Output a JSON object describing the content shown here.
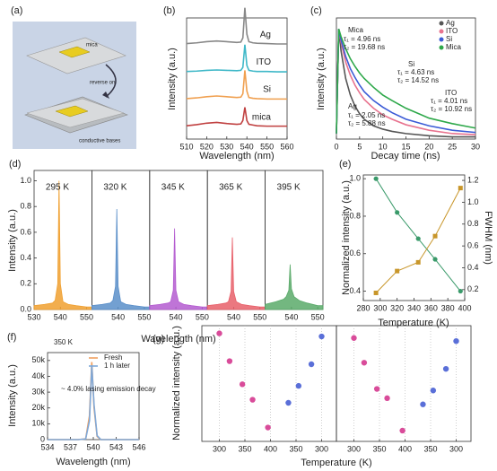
{
  "schematic": {
    "panel_label": "(a)",
    "labels": [
      "mica",
      "reverse on",
      "conductive bases"
    ]
  },
  "chart_data": [
    {
      "type": "line",
      "panel": "(b)",
      "waterfall": true,
      "xlabel": "Wavelength (nm)",
      "ylabel": "Intensity (a.u.)",
      "xlim": [
        510,
        560
      ],
      "xticks": [
        510,
        520,
        530,
        540,
        550,
        560
      ],
      "x": [
        510,
        515,
        520,
        525,
        530,
        535,
        537,
        538,
        539,
        540,
        541,
        543,
        545,
        550,
        555,
        560
      ],
      "series": [
        {
          "name": "Ag",
          "color": "#888888",
          "values": [
            0.05,
            0.07,
            0.1,
            0.12,
            0.1,
            0.08,
            0.09,
            0.2,
            1.0,
            0.3,
            0.1,
            0.07,
            0.06,
            0.05,
            0.04,
            0.04
          ]
        },
        {
          "name": "ITO",
          "color": "#3fb8c8",
          "values": [
            0.04,
            0.05,
            0.07,
            0.08,
            0.07,
            0.06,
            0.07,
            0.15,
            0.75,
            0.2,
            0.07,
            0.05,
            0.04,
            0.04,
            0.03,
            0.03
          ]
        },
        {
          "name": "Si",
          "color": "#f0a050",
          "values": [
            0.05,
            0.07,
            0.1,
            0.12,
            0.1,
            0.08,
            0.09,
            0.18,
            0.8,
            0.25,
            0.08,
            0.06,
            0.05,
            0.04,
            0.04,
            0.04
          ]
        },
        {
          "name": "mica",
          "color": "#c04040",
          "values": [
            0.06,
            0.09,
            0.13,
            0.15,
            0.12,
            0.1,
            0.11,
            0.2,
            0.55,
            0.2,
            0.1,
            0.08,
            0.06,
            0.05,
            0.05,
            0.05
          ]
        }
      ]
    },
    {
      "type": "line",
      "panel": "(c)",
      "xlabel": "Decay time (ns)",
      "ylabel": "Intensity (a.u.)",
      "legend": "top-right",
      "xlim": [
        0,
        30
      ],
      "xticks": [
        0,
        5,
        10,
        15,
        20,
        25,
        30
      ],
      "ylim": [
        0,
        1.1
      ],
      "x": [
        0,
        0.5,
        1,
        2,
        3,
        4,
        5,
        6,
        8,
        10,
        12,
        15,
        20,
        25,
        30
      ],
      "series": [
        {
          "name": "Ag",
          "color": "#555555",
          "values": [
            0.05,
            1.0,
            0.8,
            0.55,
            0.4,
            0.3,
            0.23,
            0.18,
            0.12,
            0.09,
            0.07,
            0.05,
            0.03,
            0.02,
            0.02
          ]
        },
        {
          "name": "ITO",
          "color": "#e8738f",
          "values": [
            0.05,
            1.0,
            0.88,
            0.7,
            0.58,
            0.49,
            0.42,
            0.36,
            0.28,
            0.22,
            0.18,
            0.13,
            0.08,
            0.05,
            0.04
          ]
        },
        {
          "name": "Si",
          "color": "#3b5bd6",
          "values": [
            0.05,
            1.0,
            0.9,
            0.75,
            0.64,
            0.56,
            0.49,
            0.43,
            0.35,
            0.29,
            0.24,
            0.18,
            0.12,
            0.08,
            0.06
          ]
        },
        {
          "name": "Mica",
          "color": "#2ea84a",
          "values": [
            0.05,
            1.0,
            0.93,
            0.82,
            0.73,
            0.66,
            0.6,
            0.55,
            0.47,
            0.4,
            0.35,
            0.28,
            0.19,
            0.14,
            0.1
          ]
        }
      ],
      "annotations": [
        {
          "text": "Mica",
          "color": "#2ea84a"
        },
        {
          "text": "τ₁ = 4.96 ns",
          "color": "#2ea84a"
        },
        {
          "text": "τ₂ = 19.68 ns",
          "color": "#2ea84a"
        },
        {
          "text": "Si",
          "color": "#3b5bd6"
        },
        {
          "text": "τ₁ = 4.63 ns",
          "color": "#3b5bd6"
        },
        {
          "text": "τ₂ = 14.52 ns",
          "color": "#3b5bd6"
        },
        {
          "text": "ITO",
          "color": "#e8738f"
        },
        {
          "text": "τ₁ = 4.01 ns",
          "color": "#e8738f"
        },
        {
          "text": "τ₂ = 10.92 ns",
          "color": "#e8738f"
        },
        {
          "text": "Ag",
          "color": "#555555"
        },
        {
          "text": "τ₁ = 2.05 ns",
          "color": "#555555"
        },
        {
          "text": "τ₂ = 5.88 ns",
          "color": "#555555"
        }
      ]
    },
    {
      "type": "area",
      "panel": "(d)",
      "xlabel": "Wavelength (nm)",
      "ylabel": "Intensity (a.u.)",
      "label": "295 K",
      "xlim": [
        530,
        552
      ],
      "xticks": [
        530,
        540,
        550
      ],
      "ylim": [
        0,
        1.08
      ],
      "yticks": [
        {
          "value": 0,
          "label": "0.0"
        },
        0.2,
        0.4,
        0.6,
        0.8,
        {
          "value": 1,
          "label": "1.0"
        }
      ],
      "x": [
        530,
        534,
        537,
        538,
        539,
        539.5,
        540,
        541,
        543,
        546,
        550,
        552
      ],
      "series": [
        {
          "color": "#f0a030",
          "values": [
            0.03,
            0.04,
            0.05,
            0.07,
            0.2,
            1.0,
            0.2,
            0.06,
            0.04,
            0.03,
            0.02,
            0.02
          ]
        }
      ]
    },
    {
      "type": "area",
      "label": "320 K",
      "xlim": [
        530,
        552
      ],
      "xticks": [
        540,
        550
      ],
      "ylim": [
        0,
        1.08
      ],
      "x": [
        530,
        534,
        537,
        538,
        539,
        539.5,
        540,
        541,
        543,
        546,
        550,
        552
      ],
      "series": [
        {
          "color": "#5b8fc9",
          "values": [
            0.03,
            0.04,
            0.05,
            0.07,
            0.18,
            0.78,
            0.18,
            0.06,
            0.04,
            0.03,
            0.02,
            0.02
          ]
        }
      ]
    },
    {
      "type": "area",
      "label": "345 K",
      "xlim": [
        530,
        552
      ],
      "xticks": [
        540,
        550
      ],
      "ylim": [
        0,
        1.08
      ],
      "x": [
        530,
        534,
        537,
        538,
        539,
        539.5,
        540,
        541,
        543,
        546,
        550,
        552
      ],
      "series": [
        {
          "color": "#b45cd0",
          "values": [
            0.03,
            0.04,
            0.05,
            0.06,
            0.15,
            0.63,
            0.15,
            0.06,
            0.04,
            0.03,
            0.02,
            0.02
          ]
        }
      ]
    },
    {
      "type": "area",
      "label": "365 K",
      "xlim": [
        530,
        552
      ],
      "xticks": [
        540,
        550
      ],
      "ylim": [
        0,
        1.08
      ],
      "x": [
        530,
        534,
        537,
        538,
        539,
        539.5,
        540,
        541,
        543,
        546,
        550,
        552
      ],
      "series": [
        {
          "color": "#e8606a",
          "values": [
            0.03,
            0.04,
            0.05,
            0.06,
            0.14,
            0.56,
            0.14,
            0.06,
            0.04,
            0.03,
            0.02,
            0.02
          ]
        }
      ]
    },
    {
      "type": "area",
      "label": "395 K",
      "xlim": [
        530,
        552
      ],
      "xticks": [
        540,
        550
      ],
      "ylim": [
        0,
        1.08
      ],
      "x": [
        530,
        534,
        537,
        538,
        539,
        539.5,
        540,
        541,
        543,
        546,
        550,
        552
      ],
      "series": [
        {
          "color": "#5aaa6a",
          "values": [
            0.04,
            0.06,
            0.08,
            0.1,
            0.15,
            0.35,
            0.16,
            0.1,
            0.07,
            0.05,
            0.03,
            0.03
          ]
        }
      ]
    },
    {
      "type": "line",
      "panel": "(e)",
      "markers": true,
      "xlabel": "Temperature (K)",
      "ylabel": "Normalized intensity (a.u.)",
      "y2label": "FWHM (nm)",
      "xlim": [
        280,
        400
      ],
      "xticks": [
        280,
        300,
        320,
        340,
        360,
        380,
        400
      ],
      "ylim": [
        0.35,
        1.02
      ],
      "yticks": [
        0.4,
        0.6,
        0.8,
        {
          "value": 1,
          "label": "1.0"
        }
      ],
      "y2lim": [
        0.1,
        1.25
      ],
      "y2ticks": [
        0.2,
        0.4,
        0.6,
        0.8,
        {
          "value": 1,
          "label": "1.0"
        },
        1.2
      ],
      "x": [
        295,
        320,
        345,
        365,
        395
      ],
      "series": [
        {
          "color": "#3a9a6a",
          "values": [
            1.0,
            0.82,
            0.68,
            0.57,
            0.4
          ]
        },
        {
          "color": "#c8962a",
          "axis": "y2",
          "values": [
            0.17,
            0.37,
            0.45,
            0.69,
            1.13
          ]
        }
      ]
    },
    {
      "type": "line",
      "panel": "(f)",
      "legend": "top-right",
      "xlabel": "Wavelength (nm)",
      "ylabel": "Intensity (a.u.)",
      "xlim": [
        534,
        546
      ],
      "xticks": [
        534,
        537,
        540,
        543,
        546
      ],
      "ylim": [
        0,
        55000
      ],
      "yticks": [
        0,
        {
          "value": 10000,
          "label": "10k"
        },
        {
          "value": 20000,
          "label": "20k"
        },
        {
          "value": 30000,
          "label": "30k"
        },
        {
          "value": 40000,
          "label": "40k"
        },
        {
          "value": 50000,
          "label": "50k"
        }
      ],
      "x": [
        534,
        536,
        538,
        539,
        539.5,
        539.8,
        540.1,
        540.5,
        541,
        543,
        546
      ],
      "series": [
        {
          "name": "Fresh",
          "color": "#f0a060",
          "values": [
            0,
            0,
            0,
            500,
            15000,
            49000,
            20000,
            2000,
            0,
            0,
            0
          ]
        },
        {
          "name": "1 h later",
          "color": "#7fa8d8",
          "values": [
            0,
            0,
            0,
            400,
            12000,
            47000,
            22000,
            2500,
            0,
            0,
            0
          ]
        }
      ],
      "annotations": [
        {
          "text": "350 K"
        },
        {
          "text": "~ 4.0% lasing emission decay"
        }
      ]
    },
    {
      "type": "scatter",
      "panel": "(g)",
      "grid": true,
      "xlabel": "Temperature (K)",
      "ylabel": "Normalized  intensity (a.u.)",
      "xticks": [
        300,
        350,
        400,
        350,
        300
      ],
      "ylim": [
        0.3,
        1.05
      ],
      "series": [
        {
          "color": "#d94c9a",
          "x": [
            300,
            320,
            345,
            365,
            395
          ],
          "values": [
            1.0,
            0.82,
            0.67,
            0.57,
            0.39
          ]
        },
        {
          "color": "#5a6fd8",
          "x": [
            365,
            345,
            320,
            300
          ],
          "values": [
            0.55,
            0.66,
            0.8,
            0.98
          ]
        }
      ]
    },
    {
      "type": "scatter",
      "grid": true,
      "xticks": [
        300,
        350,
        400,
        350,
        300
      ],
      "ylim": [
        0.3,
        1.05
      ],
      "series": [
        {
          "color": "#d94c9a",
          "x": [
            300,
            320,
            345,
            365,
            395
          ],
          "values": [
            0.97,
            0.81,
            0.64,
            0.58,
            0.37
          ]
        },
        {
          "color": "#5a6fd8",
          "x": [
            365,
            345,
            320,
            300
          ],
          "values": [
            0.54,
            0.63,
            0.77,
            0.95
          ]
        }
      ]
    }
  ]
}
